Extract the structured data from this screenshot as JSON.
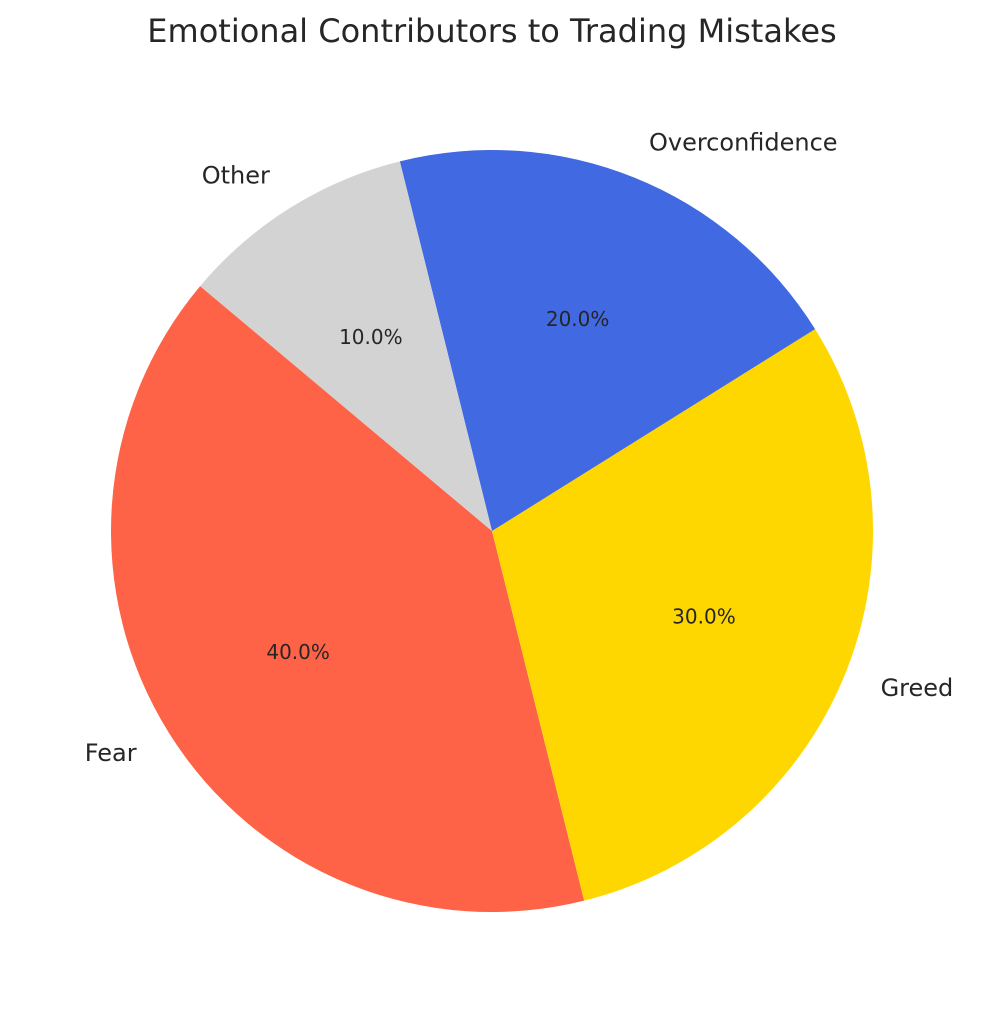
{
  "chart_data": {
    "type": "pie",
    "title": "Emotional Contributors to Trading Mistakes",
    "start_angle_deg": 140,
    "direction": "counterclockwise",
    "slices": [
      {
        "label": "Fear",
        "value": 40,
        "pct_label": "40.0%",
        "color": "#FF6347"
      },
      {
        "label": "Greed",
        "value": 30,
        "pct_label": "30.0%",
        "color": "#FFD700"
      },
      {
        "label": "Overconfidence",
        "value": 20,
        "pct_label": "20.0%",
        "color": "#4169E1"
      },
      {
        "label": "Other",
        "value": 10,
        "pct_label": "10.0%",
        "color": "#D3D3D3"
      }
    ]
  }
}
